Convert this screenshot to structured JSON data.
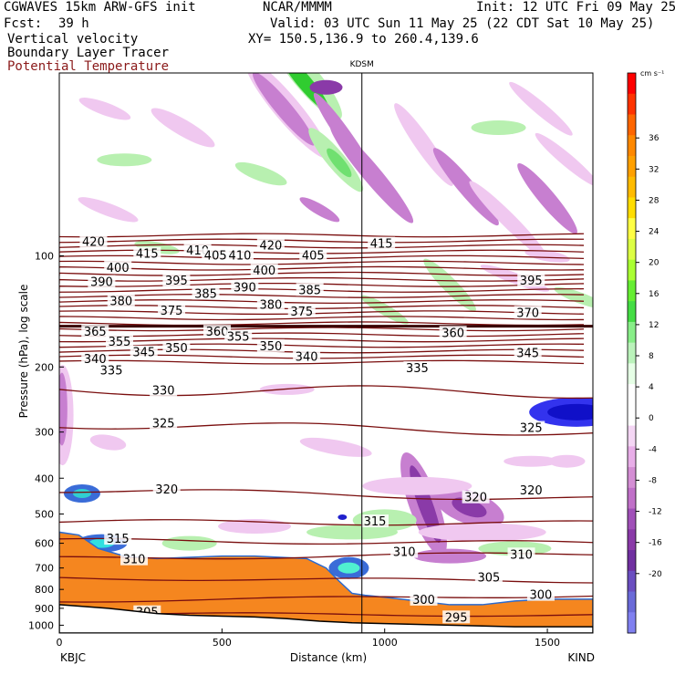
{
  "header": {
    "model": "CGWAVES 15km ARW-GFS init",
    "org": "NCAR/MMMM",
    "init": "Init: 12 UTC Fri 09 May 25",
    "fcst_label": "Fcst:",
    "fcst_value": "39 h",
    "valid": "Valid: 03 UTC Sun 11 May 25 (22 CDT Sat 10 May 25)",
    "field1": "Vertical velocity",
    "xy": "XY= 150.5,136.9 to 260.4,139.6",
    "field2": "Boundary Layer Tracer",
    "field3": "Potential Temperature",
    "field3_color": "#8b1a1a"
  },
  "chart_data": {
    "type": "contour",
    "xlabel": "Distance (km)",
    "ylabel": "Pressure (hPa), log scale",
    "x_ticks": [
      "0",
      "500",
      "1000",
      "1500"
    ],
    "x_tick_values": [
      0,
      500,
      1000,
      1500
    ],
    "xlim": [
      0,
      1640
    ],
    "y_ticks": [
      "100",
      "200",
      "300",
      "400",
      "500",
      "600",
      "700",
      "800",
      "900",
      "1000"
    ],
    "y_tick_values": [
      100,
      200,
      300,
      400,
      500,
      600,
      700,
      800,
      900,
      1000
    ],
    "ylim": [
      1050,
      32
    ],
    "y_scale": "log",
    "start_station": "KBJC",
    "end_station": "KIND",
    "marker_station": "KDSM",
    "marker_x": 930,
    "colorbar_unit": "cm s⁻¹",
    "colorbar_labels": [
      "36",
      "32",
      "28",
      "24",
      "20",
      "16",
      "12",
      "8",
      "4",
      "0",
      "-4",
      "-8",
      "-12",
      "-16",
      "-20"
    ],
    "colorbar_colors": [
      "#ff0000",
      "#ff3300",
      "#ff6600",
      "#ff8800",
      "#ffa000",
      "#ffbb00",
      "#ffdd00",
      "#ffff44",
      "#ddff44",
      "#aaff33",
      "#66ee33",
      "#44dd44",
      "#88ee88",
      "#bbf3bb",
      "#e6ffe6",
      "#ffffff",
      "#ffffff",
      "#f4d6f4",
      "#e8aee8",
      "#d48ed4",
      "#c070c8",
      "#a050b8",
      "#8a3aa8",
      "#7030a0",
      "#6a4ec0",
      "#6a6ad8",
      "#8080f0"
    ],
    "theta_color": "#7a0e0e",
    "upper_theta_labels": [
      {
        "x": 105,
        "p": 92,
        "t": "420"
      },
      {
        "x": 270,
        "p": 99,
        "t": "415"
      },
      {
        "x": 425,
        "p": 97,
        "t": "410"
      },
      {
        "x": 480,
        "p": 100,
        "t": "405"
      },
      {
        "x": 555,
        "p": 100,
        "t": "410"
      },
      {
        "x": 650,
        "p": 94,
        "t": "420"
      },
      {
        "x": 780,
        "p": 100,
        "t": "405"
      },
      {
        "x": 990,
        "p": 93,
        "t": "415"
      },
      {
        "x": 180,
        "p": 108,
        "t": "400"
      },
      {
        "x": 630,
        "p": 110,
        "t": "400"
      },
      {
        "x": 360,
        "p": 117,
        "t": "395"
      },
      {
        "x": 1450,
        "p": 117,
        "t": "395"
      },
      {
        "x": 130,
        "p": 118,
        "t": "390"
      },
      {
        "x": 570,
        "p": 122,
        "t": "390"
      },
      {
        "x": 770,
        "p": 124,
        "t": "385"
      },
      {
        "x": 450,
        "p": 127,
        "t": "385"
      },
      {
        "x": 190,
        "p": 133,
        "t": "380"
      },
      {
        "x": 650,
        "p": 136,
        "t": "380"
      },
      {
        "x": 345,
        "p": 141,
        "t": "375"
      },
      {
        "x": 745,
        "p": 142,
        "t": "375"
      },
      {
        "x": 1440,
        "p": 143,
        "t": "370"
      },
      {
        "x": 110,
        "p": 161,
        "t": "365"
      },
      {
        "x": 485,
        "p": 161,
        "t": "360"
      },
      {
        "x": 1210,
        "p": 162,
        "t": "360"
      },
      {
        "x": 550,
        "p": 166,
        "t": "355"
      },
      {
        "x": 185,
        "p": 171,
        "t": "355"
      },
      {
        "x": 360,
        "p": 178,
        "t": "350"
      },
      {
        "x": 650,
        "p": 176,
        "t": "350"
      },
      {
        "x": 260,
        "p": 183,
        "t": "345"
      },
      {
        "x": 1440,
        "p": 184,
        "t": "345"
      },
      {
        "x": 110,
        "p": 191,
        "t": "340"
      },
      {
        "x": 760,
        "p": 188,
        "t": "340"
      },
      {
        "x": 160,
        "p": 205,
        "t": "335"
      },
      {
        "x": 1100,
        "p": 202,
        "t": "335"
      },
      {
        "x": 320,
        "p": 232,
        "t": "330"
      },
      {
        "x": 320,
        "p": 285,
        "t": "325"
      },
      {
        "x": 1450,
        "p": 293,
        "t": "325"
      },
      {
        "x": 330,
        "p": 430,
        "t": "320"
      },
      {
        "x": 1280,
        "p": 452,
        "t": "320"
      },
      {
        "x": 1450,
        "p": 432,
        "t": "320"
      },
      {
        "x": 970,
        "p": 525,
        "t": "315"
      },
      {
        "x": 180,
        "p": 585,
        "t": "315"
      },
      {
        "x": 230,
        "p": 665,
        "t": "310"
      },
      {
        "x": 1060,
        "p": 635,
        "t": "310"
      },
      {
        "x": 1420,
        "p": 645,
        "t": "310"
      },
      {
        "x": 1320,
        "p": 745,
        "t": "305"
      },
      {
        "x": 270,
        "p": 925,
        "t": "305"
      },
      {
        "x": 1480,
        "p": 830,
        "t": "300"
      },
      {
        "x": 1120,
        "p": 855,
        "t": "300"
      },
      {
        "x": 1220,
        "p": 955,
        "t": "295"
      }
    ]
  }
}
